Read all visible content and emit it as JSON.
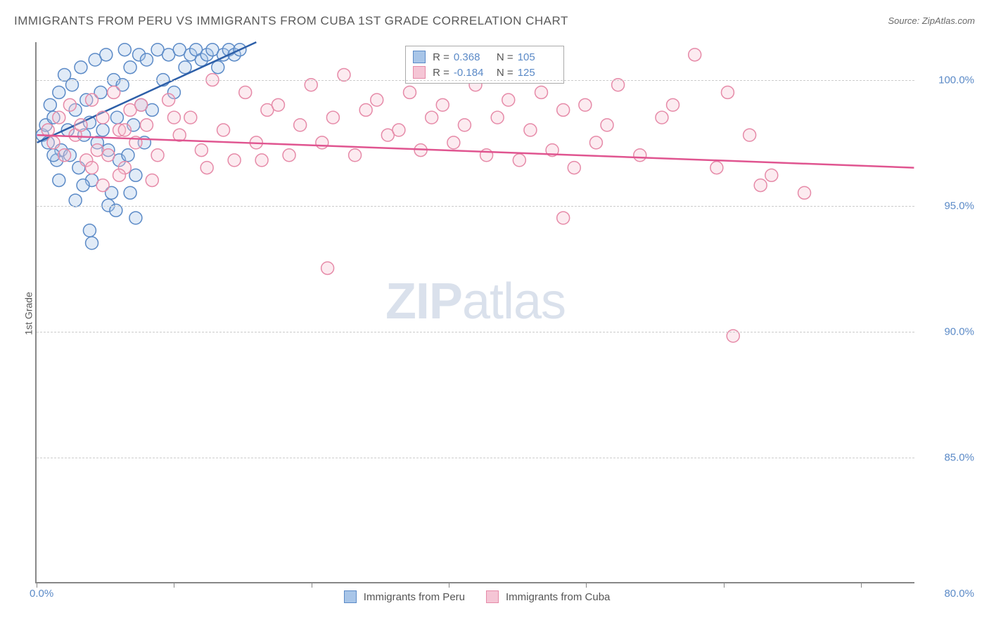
{
  "title": "IMMIGRANTS FROM PERU VS IMMIGRANTS FROM CUBA 1ST GRADE CORRELATION CHART",
  "source": "Source: ZipAtlas.com",
  "ylabel": "1st Grade",
  "watermark": {
    "bold": "ZIP",
    "light": "atlas"
  },
  "chart": {
    "type": "scatter",
    "xlim": [
      0,
      80
    ],
    "ylim": [
      80,
      101.5
    ],
    "yticks": [
      {
        "v": 100,
        "label": "100.0%"
      },
      {
        "v": 95,
        "label": "95.0%"
      },
      {
        "v": 90,
        "label": "90.0%"
      },
      {
        "v": 85,
        "label": "85.0%"
      }
    ],
    "xtick_left": "0.0%",
    "xtick_right": "80.0%",
    "xtick_positions": [
      0,
      12.5,
      25,
      37.5,
      50,
      62.5,
      75
    ],
    "grid_color": "#cccccc",
    "background": "#ffffff",
    "marker_radius": 9,
    "marker_stroke_width": 1.5,
    "marker_fill_opacity": 0.35,
    "series": [
      {
        "name": "Immigrants from Peru",
        "color_fill": "#a8c5e8",
        "color_stroke": "#5b8ac7",
        "line_color": "#2d5fa8",
        "line_width": 2.5,
        "r_value": "0.368",
        "n_value": "105",
        "trend": {
          "x1": 0,
          "y1": 97.5,
          "x2": 20,
          "y2": 101.5
        },
        "points": [
          [
            0.5,
            97.8
          ],
          [
            0.8,
            98.2
          ],
          [
            1.0,
            97.5
          ],
          [
            1.2,
            99.0
          ],
          [
            1.5,
            98.5
          ],
          [
            1.8,
            96.8
          ],
          [
            2.0,
            99.5
          ],
          [
            2.2,
            97.2
          ],
          [
            2.5,
            100.2
          ],
          [
            2.8,
            98.0
          ],
          [
            3.0,
            97.0
          ],
          [
            3.2,
            99.8
          ],
          [
            3.5,
            98.8
          ],
          [
            3.8,
            96.5
          ],
          [
            4.0,
            100.5
          ],
          [
            4.3,
            97.8
          ],
          [
            4.5,
            99.2
          ],
          [
            4.8,
            98.3
          ],
          [
            5.0,
            96.0
          ],
          [
            5.3,
            100.8
          ],
          [
            5.5,
            97.5
          ],
          [
            5.8,
            99.5
          ],
          [
            6.0,
            98.0
          ],
          [
            6.3,
            101.0
          ],
          [
            6.5,
            97.2
          ],
          [
            6.8,
            95.5
          ],
          [
            7.0,
            100.0
          ],
          [
            7.3,
            98.5
          ],
          [
            7.5,
            96.8
          ],
          [
            7.8,
            99.8
          ],
          [
            8.0,
            101.2
          ],
          [
            8.3,
            97.0
          ],
          [
            8.5,
            100.5
          ],
          [
            8.8,
            98.2
          ],
          [
            9.0,
            96.2
          ],
          [
            9.3,
            101.0
          ],
          [
            9.5,
            99.0
          ],
          [
            9.8,
            97.5
          ],
          [
            10.0,
            100.8
          ],
          [
            10.5,
            98.8
          ],
          [
            11.0,
            101.2
          ],
          [
            11.5,
            100.0
          ],
          [
            12.0,
            101.0
          ],
          [
            12.5,
            99.5
          ],
          [
            13.0,
            101.2
          ],
          [
            13.5,
            100.5
          ],
          [
            14.0,
            101.0
          ],
          [
            14.5,
            101.2
          ],
          [
            15.0,
            100.8
          ],
          [
            15.5,
            101.0
          ],
          [
            16.0,
            101.2
          ],
          [
            16.5,
            100.5
          ],
          [
            17.0,
            101.0
          ],
          [
            17.5,
            101.2
          ],
          [
            18.0,
            101.0
          ],
          [
            18.5,
            101.2
          ],
          [
            4.2,
            95.8
          ],
          [
            5.0,
            93.5
          ],
          [
            6.5,
            95.0
          ],
          [
            3.5,
            95.2
          ],
          [
            7.2,
            94.8
          ],
          [
            2.0,
            96.0
          ],
          [
            8.5,
            95.5
          ],
          [
            1.5,
            97.0
          ],
          [
            9.0,
            94.5
          ],
          [
            4.8,
            94.0
          ]
        ]
      },
      {
        "name": "Immigrants from Cuba",
        "color_fill": "#f5c5d5",
        "color_stroke": "#e68aa8",
        "line_color": "#e05590",
        "line_width": 2.5,
        "r_value": "-0.184",
        "n_value": "125",
        "trend": {
          "x1": 0,
          "y1": 97.8,
          "x2": 80,
          "y2": 96.5
        },
        "points": [
          [
            1.0,
            98.0
          ],
          [
            1.5,
            97.5
          ],
          [
            2.0,
            98.5
          ],
          [
            2.5,
            97.0
          ],
          [
            3.0,
            99.0
          ],
          [
            3.5,
            97.8
          ],
          [
            4.0,
            98.2
          ],
          [
            4.5,
            96.8
          ],
          [
            5.0,
            99.2
          ],
          [
            5.5,
            97.2
          ],
          [
            6.0,
            98.5
          ],
          [
            6.5,
            97.0
          ],
          [
            7.0,
            99.5
          ],
          [
            7.5,
            98.0
          ],
          [
            8.0,
            96.5
          ],
          [
            8.5,
            98.8
          ],
          [
            9.0,
            97.5
          ],
          [
            9.5,
            99.0
          ],
          [
            10.0,
            98.2
          ],
          [
            11.0,
            97.0
          ],
          [
            12.0,
            99.2
          ],
          [
            13.0,
            97.8
          ],
          [
            14.0,
            98.5
          ],
          [
            15.0,
            97.2
          ],
          [
            16.0,
            100.0
          ],
          [
            17.0,
            98.0
          ],
          [
            18.0,
            96.8
          ],
          [
            19.0,
            99.5
          ],
          [
            20.0,
            97.5
          ],
          [
            21.0,
            98.8
          ],
          [
            22.0,
            99.0
          ],
          [
            23.0,
            97.0
          ],
          [
            24.0,
            98.2
          ],
          [
            25.0,
            99.8
          ],
          [
            26.0,
            97.5
          ],
          [
            27.0,
            98.5
          ],
          [
            28.0,
            100.2
          ],
          [
            29.0,
            97.0
          ],
          [
            30.0,
            98.8
          ],
          [
            31.0,
            99.2
          ],
          [
            32.0,
            97.8
          ],
          [
            33.0,
            98.0
          ],
          [
            34.0,
            99.5
          ],
          [
            35.0,
            97.2
          ],
          [
            36.0,
            98.5
          ],
          [
            37.0,
            99.0
          ],
          [
            38.0,
            97.5
          ],
          [
            39.0,
            98.2
          ],
          [
            40.0,
            99.8
          ],
          [
            41.0,
            97.0
          ],
          [
            42.0,
            98.5
          ],
          [
            43.0,
            99.2
          ],
          [
            44.0,
            96.8
          ],
          [
            45.0,
            98.0
          ],
          [
            46.0,
            99.5
          ],
          [
            47.0,
            97.2
          ],
          [
            48.0,
            98.8
          ],
          [
            49.0,
            96.5
          ],
          [
            50.0,
            99.0
          ],
          [
            51.0,
            97.5
          ],
          [
            52.0,
            98.2
          ],
          [
            53.0,
            99.8
          ],
          [
            55.0,
            97.0
          ],
          [
            57.0,
            98.5
          ],
          [
            58.0,
            99.0
          ],
          [
            60.0,
            101.0
          ],
          [
            62.0,
            96.5
          ],
          [
            63.0,
            99.5
          ],
          [
            65.0,
            97.8
          ],
          [
            66.0,
            95.8
          ],
          [
            67.0,
            96.2
          ],
          [
            70.0,
            95.5
          ],
          [
            63.5,
            89.8
          ],
          [
            48.0,
            94.5
          ],
          [
            26.5,
            92.5
          ],
          [
            5.0,
            96.5
          ],
          [
            6.0,
            95.8
          ],
          [
            7.5,
            96.2
          ],
          [
            10.5,
            96.0
          ],
          [
            15.5,
            96.5
          ],
          [
            20.5,
            96.8
          ],
          [
            8.0,
            98.0
          ],
          [
            12.5,
            98.5
          ]
        ]
      }
    ]
  },
  "legend_top": {
    "r_label": "R =",
    "n_label": "N ="
  },
  "bottom_legend": {
    "series1": "Immigrants from Peru",
    "series2": "Immigrants from Cuba"
  }
}
